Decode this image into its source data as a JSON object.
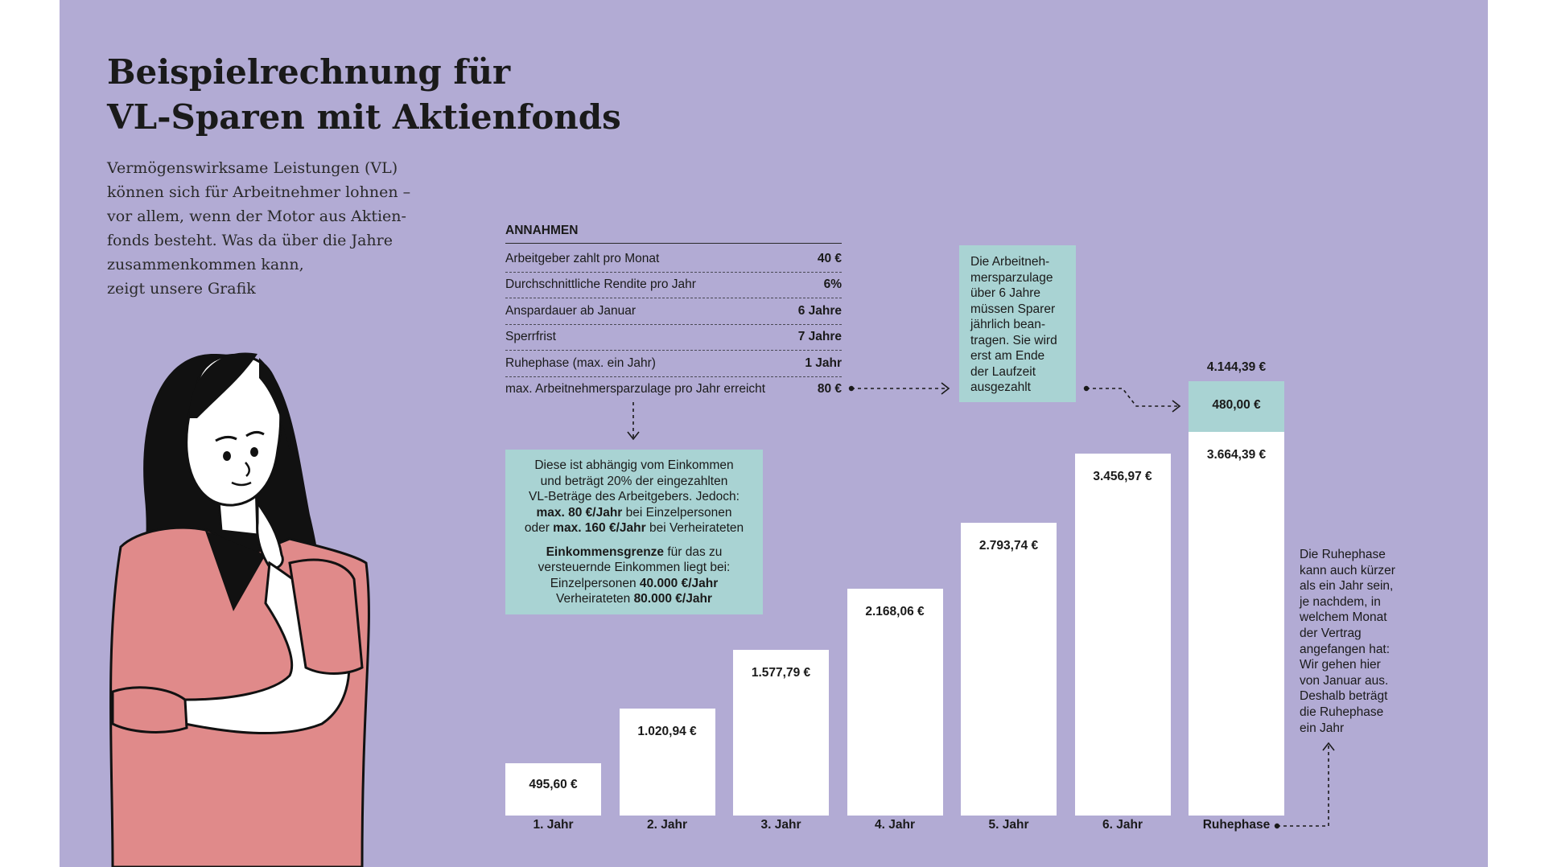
{
  "title_line1": "Beispielrechnung für",
  "title_line2": "VL-Sparen mit Aktienfonds",
  "intro_lines": [
    "Vermögenswirksame Leistungen (VL)",
    "können sich für Arbeitnehmer lohnen –",
    "vor allem, wenn der Motor aus Aktien-",
    "fonds besteht. Was da über die Jahre",
    "zusammenkommen kann,",
    "zeigt unsere Grafik"
  ],
  "assumptions": {
    "heading": "ANNAHMEN",
    "rows": [
      {
        "label": "Arbeitgeber zahlt pro Monat",
        "value": "40 €"
      },
      {
        "label": "Durchschnittliche Rendite pro Jahr",
        "value": "6%"
      },
      {
        "label": "Anspardauer ab Januar",
        "value": "6 Jahre"
      },
      {
        "label": "Sperrfrist",
        "value": "7 Jahre"
      },
      {
        "label": "Ruhephase (max. ein Jahr)",
        "value": "1 Jahr"
      },
      {
        "label": "max. Arbeitnehmersparzulage pro Jahr erreicht",
        "value": "80 €"
      }
    ]
  },
  "calc_note": {
    "l1": "Diese ist abhängig vom Einkommen",
    "l2": "und beträgt 20% der eingezahlten",
    "l3": "VL-Beträge des Arbeitgebers. Jedoch:",
    "l4a": "max. 80 €/Jahr",
    "l4b": " bei Einzelpersonen",
    "l5a": "oder ",
    "l5b": "max. 160 €/Jahr",
    "l5c": " bei Verheirateten",
    "l6a": "Einkommensgrenze",
    "l6b": " für das zu",
    "l7": "versteuernde Einkommen liegt bei:",
    "l8a": "Einzelpersonen ",
    "l8b": "40.000 €/Jahr",
    "l9a": "Verheirateten ",
    "l9b": "80.000 €/Jahr"
  },
  "zulage_note_lines": [
    "Die Arbeitneh-",
    "mersparzulage",
    "über 6 Jahre",
    "müssen Sparer",
    "jährlich bean-",
    "tragen. Sie wird",
    "erst am Ende",
    "der Laufzeit",
    "ausgezahlt"
  ],
  "side_note_lines": [
    "Die Ruhephase",
    "kann auch kürzer",
    "als ein Jahr sein,",
    "je nachdem, in",
    "welchem Monat",
    "der Vertrag",
    "angefangen hat:",
    "Wir gehen hier",
    "von Januar aus.",
    "Deshalb beträgt",
    "die Ruhephase",
    "ein Jahr"
  ],
  "colors": {
    "background": "#b2abd4",
    "bar": "#ffffff",
    "zulage_segment": "#a9d3d3",
    "note_box": "#a9d3d3",
    "text": "#1a1a1a",
    "figure_shirt": "#e08a8a",
    "figure_hair": "#111111"
  },
  "illustration": "woman-thinking-icon",
  "chart_data": {
    "type": "bar",
    "stacked": true,
    "title": "Beispielrechnung für VL-Sparen mit Aktienfonds",
    "categories": [
      "1. Jahr",
      "2. Jahr",
      "3. Jahr",
      "4. Jahr",
      "5. Jahr",
      "6. Jahr",
      "Ruhephase"
    ],
    "values": [
      495.6,
      1020.94,
      1577.79,
      2168.06,
      2793.74,
      3456.97,
      3664.39
    ],
    "value_labels": [
      "495,60 €",
      "1.020,94 €",
      "1.577,79 €",
      "2.168,06 €",
      "2.793,74 €",
      "3.456,97 €",
      "3.664,39 €"
    ],
    "zulage_segment": {
      "category": "Ruhephase",
      "value": 480.0,
      "label": "480,00 €"
    },
    "total_label": {
      "category": "Ruhephase",
      "value": 4144.39,
      "label": "4.144,39 €"
    },
    "unit": "€",
    "ylim": [
      0,
      4144.39
    ],
    "grid": false,
    "legend": "none"
  }
}
